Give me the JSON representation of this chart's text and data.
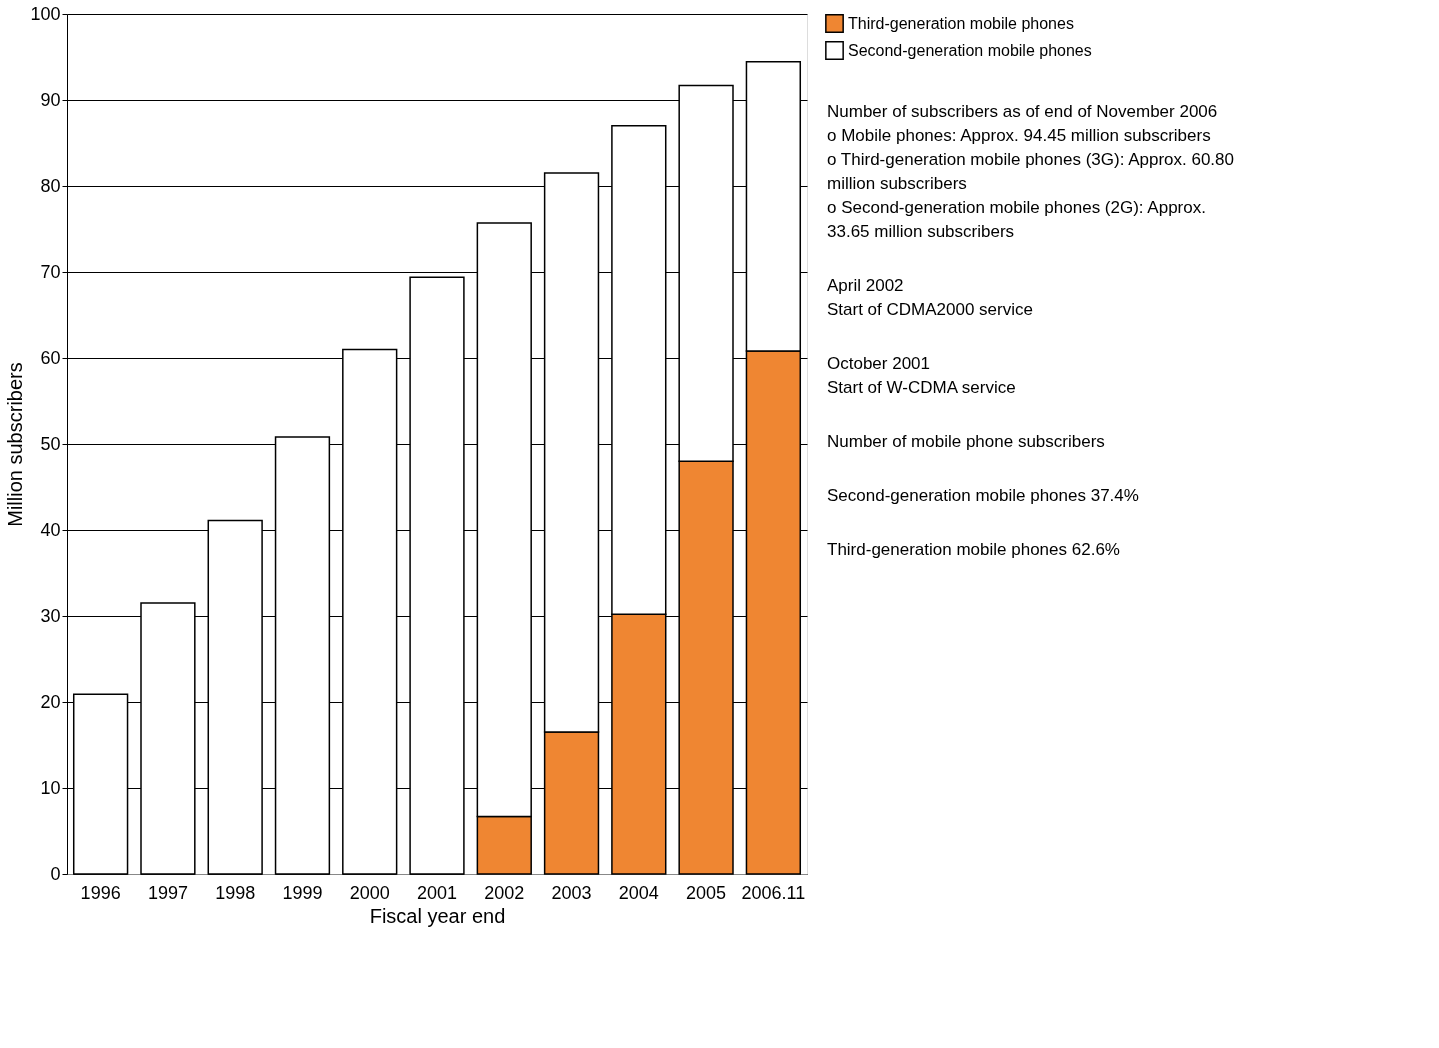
{
  "chart_data": {
    "type": "bar",
    "stacked": true,
    "xlabel": "Fiscal year end",
    "ylabel": "Million subscribers",
    "categories": [
      "1996",
      "1997",
      "1998",
      "1999",
      "2000",
      "2001",
      "2002",
      "2003",
      "2004",
      "2005",
      "2006.11"
    ],
    "series": [
      {
        "name": "Third-generation mobile phones",
        "color": "#ef8632",
        "values": [
          0,
          0,
          0,
          0,
          0,
          0,
          6.7,
          16.5,
          30.2,
          48.0,
          60.8
        ]
      },
      {
        "name": "Second-generation mobile phones",
        "color": "#ffffff",
        "values": [
          20.9,
          31.5,
          41.1,
          50.8,
          61.0,
          69.4,
          69.0,
          65.0,
          56.8,
          43.7,
          33.65
        ]
      }
    ],
    "ylim": [
      0,
      100
    ],
    "yticks": [
      0,
      10,
      20,
      30,
      40,
      50,
      60,
      70,
      80,
      90,
      100
    ],
    "grid": "y",
    "legend": "right",
    "annotations": [
      "Number of subscribers as of end of November 2006\no Mobile phones: Approx. 94.45 million subscribers\no Third-generation mobile phones (3G): Approx. 60.80\n   million subscribers\no Second-generation mobile phones (2G): Approx.\n   33.65 million subscribers",
      "April 2002\nStart of CDMA2000 service",
      "October 2001\nStart of W-CDMA service",
      "Number of mobile phone subscribers",
      "Second-generation mobile phones 37.4%",
      "Third-generation mobile phones 62.6%"
    ]
  }
}
